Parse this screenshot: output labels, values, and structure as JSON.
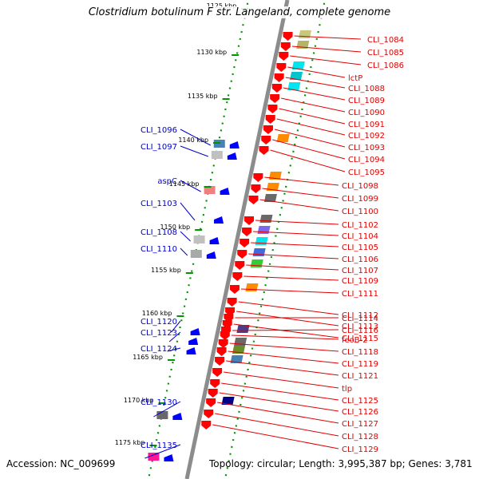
{
  "title": "Clostridium botulinum F str. Langeland, complete genome",
  "accession": "Accession: NC_009699",
  "summary": "Topology: circular; Length: 3,995,387 bp; Genes: 3,781",
  "colors": {
    "backbone": "#8c8c8c",
    "forward_gene": "#ff0000",
    "reverse_gene": "#0000ff",
    "forward_label": "#e00000",
    "reverse_label": "#0000c8",
    "tick": "#009600"
  },
  "scale": {
    "unit": "kbp",
    "labels": [
      "1125 kbp",
      "1130 kbp",
      "1135 kbp",
      "1140 kbp",
      "1145 kbp",
      "1150 kbp",
      "1155 kbp",
      "1160 kbp",
      "1165 kbp",
      "1170 kbp",
      "1175 kbp"
    ]
  },
  "forward_genes": [
    "CLI_1084",
    "CLI_1085",
    "CLI_1086",
    "lctP",
    "CLI_1088",
    "CLI_1089",
    "CLI_1090",
    "CLI_1091",
    "CLI_1092",
    "CLI_1093",
    "CLI_1094",
    "CLI_1095",
    "CLI_1098",
    "CLI_1099",
    "CLI_1100",
    "CLI_1102",
    "CLI_1104",
    "CLI_1105",
    "CLI_1106",
    "CLI_1107",
    "CLI_1109",
    "CLI_1111",
    "CLI_1112",
    "CLI_1113",
    "CLI_1114",
    "CLI_1115",
    "CLI_1116",
    "feoB-2",
    "CLI_1118",
    "CLI_1119",
    "CLI_1121",
    "tlp",
    "CLI_1125",
    "CLI_1126",
    "CLI_1127",
    "CLI_1128",
    "CLI_1129"
  ],
  "reverse_genes": [
    "CLI_1096",
    "CLI_1097",
    "aspC",
    "CLI_1103",
    "CLI_1108",
    "CLI_1110",
    "CLI_1120",
    "CLI_1123",
    "CLI_1124",
    "CLI_1130",
    "CLI_1135"
  ]
}
